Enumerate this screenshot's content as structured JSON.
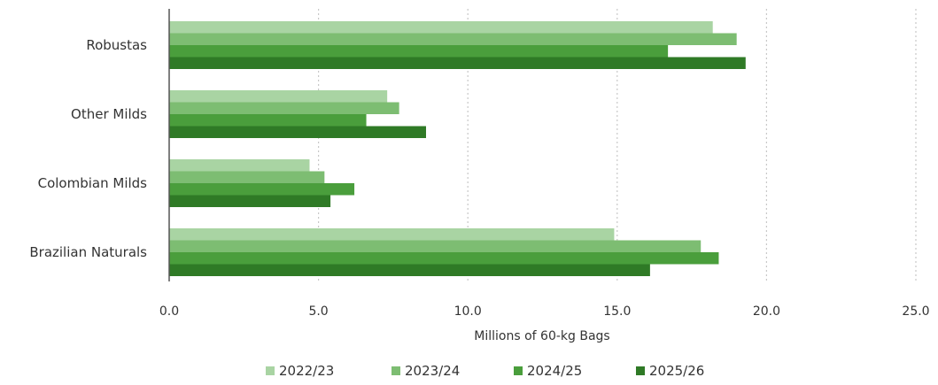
{
  "chart_data": {
    "type": "bar",
    "orientation": "horizontal",
    "categories": [
      "Robustas",
      "Other Milds",
      "Colombian Milds",
      "Brazilian Naturals"
    ],
    "series": [
      {
        "name": "2022/23",
        "color": "#a9d4a3",
        "values": [
          18.2,
          7.3,
          4.7,
          14.9
        ]
      },
      {
        "name": "2023/24",
        "color": "#7dbd72",
        "values": [
          19.0,
          7.7,
          5.2,
          17.8
        ]
      },
      {
        "name": "2024/25",
        "color": "#4a9e3c",
        "values": [
          16.7,
          6.6,
          6.2,
          18.4
        ]
      },
      {
        "name": "2025/26",
        "color": "#2f7a26",
        "values": [
          19.3,
          8.6,
          5.4,
          16.1
        ]
      }
    ],
    "xlim": [
      0,
      25
    ],
    "xticks": [
      "0.0",
      "5.0",
      "10.0",
      "15.0",
      "20.0",
      "25.0"
    ],
    "xlabel": "Millions of 60-kg Bags",
    "title": "",
    "grid": "vertical dotted",
    "legend_position": "bottom"
  }
}
